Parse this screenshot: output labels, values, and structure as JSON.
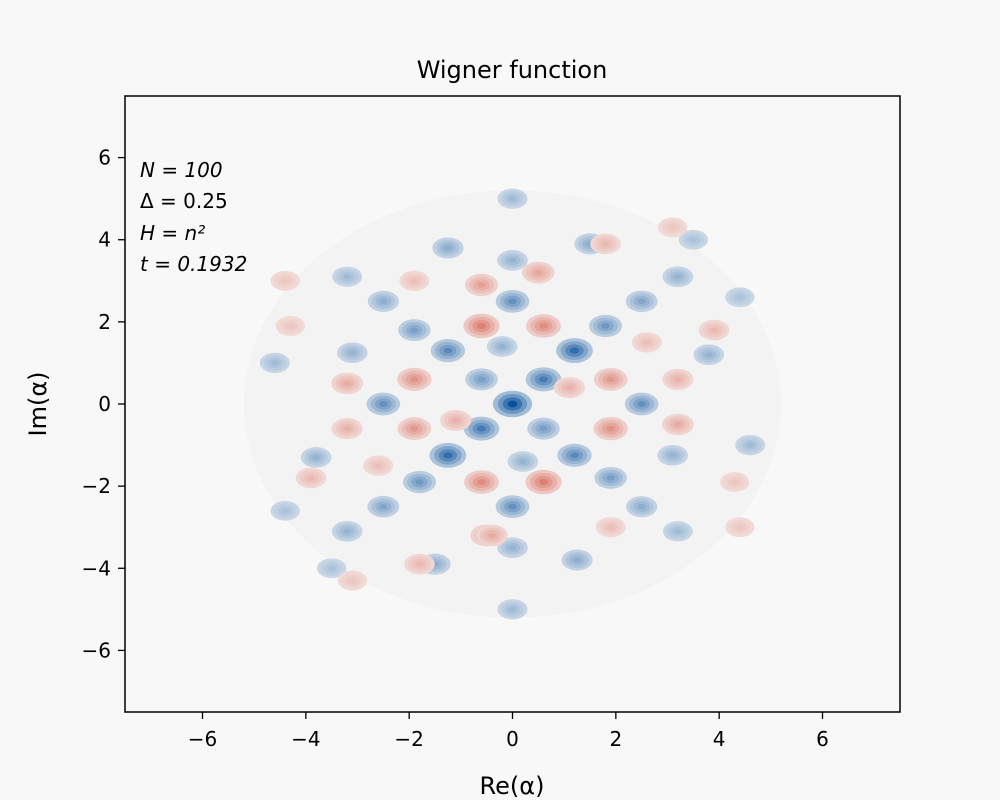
{
  "chart_data": {
    "type": "heatmap",
    "title": "Wigner function",
    "xlabel": "Re(α)",
    "ylabel": "Im(α)",
    "xlim": [
      -7.5,
      7.5
    ],
    "ylim": [
      -7.5,
      7.5
    ],
    "xticks": [
      -6,
      -4,
      -2,
      0,
      2,
      4,
      6
    ],
    "yticks": [
      -6,
      -4,
      -2,
      0,
      2,
      4,
      6
    ],
    "xtick_labels": [
      "−6",
      "−4",
      "−2",
      "0",
      "2",
      "4",
      "6"
    ],
    "ytick_labels": [
      "−6",
      "−4",
      "−2",
      "0",
      "2",
      "4",
      "6"
    ],
    "grid": false,
    "colormap": "RdBu (positive = blue, negative = red)",
    "colors": {
      "positive": "#08519c",
      "negative": "#d6604d",
      "zero": "#f7f7f7"
    },
    "annotations": {
      "N_label": "N = 100",
      "delta_label": "Δ = 0.25",
      "H_label": "H = n²",
      "t_label": "t = 0.1932"
    },
    "peaks": [
      {
        "x": 0.0,
        "y": 0.0,
        "w": 1.0
      },
      {
        "x": 0.6,
        "y": 0.6,
        "w": 0.7
      },
      {
        "x": 1.2,
        "y": 1.3,
        "w": 0.8
      },
      {
        "x": -0.6,
        "y": -0.6,
        "w": 0.7
      },
      {
        "x": -1.25,
        "y": -1.25,
        "w": 0.8
      },
      {
        "x": 0.0,
        "y": 2.5,
        "w": 0.55
      },
      {
        "x": 0.0,
        "y": -2.5,
        "w": 0.55
      },
      {
        "x": -2.5,
        "y": 0.0,
        "w": 0.55
      },
      {
        "x": 2.5,
        "y": 0.0,
        "w": 0.55
      },
      {
        "x": -1.25,
        "y": 1.3,
        "w": 0.6
      },
      {
        "x": 1.2,
        "y": -1.25,
        "w": 0.6
      },
      {
        "x": -0.6,
        "y": 0.6,
        "w": 0.45
      },
      {
        "x": 0.6,
        "y": -0.6,
        "w": 0.45
      },
      {
        "x": 1.8,
        "y": 1.9,
        "w": 0.5
      },
      {
        "x": -1.8,
        "y": -1.9,
        "w": 0.5
      },
      {
        "x": -1.9,
        "y": 1.8,
        "w": 0.45
      },
      {
        "x": 1.9,
        "y": -1.8,
        "w": 0.45
      },
      {
        "x": 2.5,
        "y": 2.5,
        "w": 0.4
      },
      {
        "x": -2.5,
        "y": -2.5,
        "w": 0.4
      },
      {
        "x": -2.5,
        "y": 2.5,
        "w": 0.35
      },
      {
        "x": 2.5,
        "y": -2.5,
        "w": 0.35
      },
      {
        "x": -3.1,
        "y": 1.25,
        "w": 0.3
      },
      {
        "x": 3.1,
        "y": -1.25,
        "w": 0.3
      },
      {
        "x": -1.25,
        "y": 3.8,
        "w": 0.35
      },
      {
        "x": 1.25,
        "y": -3.8,
        "w": 0.35
      },
      {
        "x": 1.5,
        "y": 3.9,
        "w": 0.35
      },
      {
        "x": -1.5,
        "y": -3.9,
        "w": 0.35
      },
      {
        "x": 3.8,
        "y": 1.2,
        "w": 0.3
      },
      {
        "x": -3.8,
        "y": -1.3,
        "w": 0.3
      },
      {
        "x": 3.2,
        "y": 3.1,
        "w": 0.3
      },
      {
        "x": -3.2,
        "y": -3.1,
        "w": 0.3
      },
      {
        "x": -3.2,
        "y": 3.1,
        "w": 0.25
      },
      {
        "x": 3.2,
        "y": -3.1,
        "w": 0.25
      },
      {
        "x": 0.0,
        "y": 5.0,
        "w": 0.25
      },
      {
        "x": 0.0,
        "y": -5.0,
        "w": 0.25
      },
      {
        "x": 0.0,
        "y": 3.5,
        "w": 0.3
      },
      {
        "x": 0.0,
        "y": -3.5,
        "w": 0.3
      },
      {
        "x": -4.6,
        "y": 1.0,
        "w": 0.25
      },
      {
        "x": 4.6,
        "y": -1.0,
        "w": 0.25
      },
      {
        "x": -0.2,
        "y": 1.4,
        "w": 0.3
      },
      {
        "x": 0.2,
        "y": -1.4,
        "w": 0.3
      },
      {
        "x": 4.4,
        "y": 2.6,
        "w": 0.2
      },
      {
        "x": -4.4,
        "y": -2.6,
        "w": 0.2
      },
      {
        "x": 3.5,
        "y": 4.0,
        "w": 0.2
      },
      {
        "x": -3.5,
        "y": -4.0,
        "w": 0.2
      },
      {
        "x": 0.0,
        "y": 0.0,
        "w": 0.0
      },
      {
        "x": -0.6,
        "y": 2.9,
        "w": -0.5
      },
      {
        "x": 0.6,
        "y": -1.9,
        "w": -0.75
      },
      {
        "x": -0.6,
        "y": 1.9,
        "w": -0.75
      },
      {
        "x": 0.6,
        "y": 1.9,
        "w": -0.65
      },
      {
        "x": -0.6,
        "y": -1.9,
        "w": -0.65
      },
      {
        "x": -1.9,
        "y": 0.6,
        "w": -0.6
      },
      {
        "x": 1.9,
        "y": -0.6,
        "w": -0.6
      },
      {
        "x": 1.9,
        "y": 0.6,
        "w": -0.55
      },
      {
        "x": -1.9,
        "y": -0.6,
        "w": -0.55
      },
      {
        "x": 0.5,
        "y": 3.2,
        "w": -0.45
      },
      {
        "x": -0.5,
        "y": -3.2,
        "w": -0.45
      },
      {
        "x": -3.2,
        "y": 0.5,
        "w": -0.4
      },
      {
        "x": 3.2,
        "y": -0.5,
        "w": -0.4
      },
      {
        "x": -3.2,
        "y": -0.6,
        "w": -0.35
      },
      {
        "x": 3.2,
        "y": 0.6,
        "w": -0.35
      },
      {
        "x": 1.1,
        "y": 0.4,
        "w": -0.35
      },
      {
        "x": -1.1,
        "y": -0.4,
        "w": -0.35
      },
      {
        "x": -0.4,
        "y": -3.2,
        "w": -0.4
      },
      {
        "x": 1.8,
        "y": 3.9,
        "w": -0.3
      },
      {
        "x": -1.8,
        "y": -3.9,
        "w": -0.3
      },
      {
        "x": 3.9,
        "y": 1.8,
        "w": -0.3
      },
      {
        "x": -3.9,
        "y": -1.8,
        "w": -0.3
      },
      {
        "x": -1.9,
        "y": 3.0,
        "w": -0.25
      },
      {
        "x": 1.9,
        "y": -3.0,
        "w": -0.25
      },
      {
        "x": -4.3,
        "y": 1.9,
        "w": -0.2
      },
      {
        "x": 4.3,
        "y": -1.9,
        "w": -0.2
      },
      {
        "x": 3.1,
        "y": 4.3,
        "w": -0.2
      },
      {
        "x": -3.1,
        "y": -4.3,
        "w": -0.2
      },
      {
        "x": 4.4,
        "y": -3.0,
        "w": -0.2
      },
      {
        "x": -4.4,
        "y": 3.0,
        "w": -0.2
      },
      {
        "x": 2.6,
        "y": 1.5,
        "w": -0.25
      },
      {
        "x": -2.6,
        "y": -1.5,
        "w": -0.25
      }
    ]
  }
}
